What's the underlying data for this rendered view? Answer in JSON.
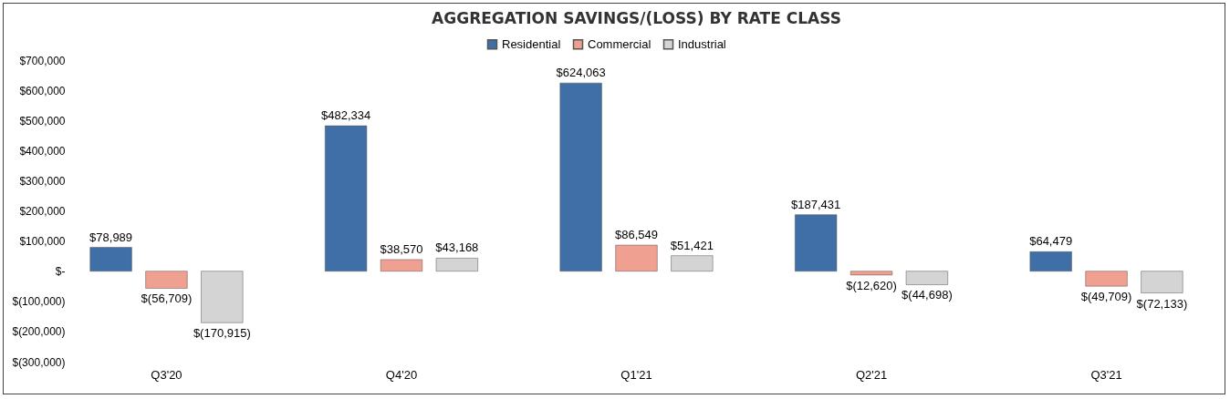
{
  "chart_data": {
    "type": "bar",
    "title": "AGGREGATION SAVINGS/(LOSS) BY RATE CLASS",
    "categories": [
      "Q3'20",
      "Q4'20",
      "Q1'21",
      "Q2'21",
      "Q3'21"
    ],
    "series": [
      {
        "name": "Residential",
        "color": "#3f6fa6",
        "values": [
          78989,
          482334,
          624063,
          187431,
          64479
        ],
        "value_labels": [
          "$78,989",
          "$482,334",
          "$624,063",
          "$187,431",
          "$64,479"
        ]
      },
      {
        "name": "Commercial",
        "color": "#f0a090",
        "values": [
          -56709,
          38570,
          86549,
          -12620,
          -49709
        ],
        "value_labels": [
          "$(56,709)",
          "$38,570",
          "$86,549",
          "$(12,620)",
          "$(49,709)"
        ]
      },
      {
        "name": "Industrial",
        "color": "#d4d4d4",
        "values": [
          -170915,
          43168,
          51421,
          -44698,
          -72133
        ],
        "value_labels": [
          "$(170,915)",
          "$43,168",
          "$51,421",
          "$(44,698)",
          "$(72,133)"
        ]
      }
    ],
    "ylim": [
      -300000,
      700000
    ],
    "yticks": [
      {
        "value": -300000,
        "label": "$(300,000)"
      },
      {
        "value": -200000,
        "label": "$(200,000)"
      },
      {
        "value": -100000,
        "label": "$(100,000)"
      },
      {
        "value": 0,
        "label": "$-"
      },
      {
        "value": 100000,
        "label": "$100,000"
      },
      {
        "value": 200000,
        "label": "$200,000"
      },
      {
        "value": 300000,
        "label": "$300,000"
      },
      {
        "value": 400000,
        "label": "$400,000"
      },
      {
        "value": 500000,
        "label": "$500,000"
      },
      {
        "value": 600000,
        "label": "$600,000"
      },
      {
        "value": 700000,
        "label": "$700,000"
      }
    ],
    "legend": "top",
    "grid": false
  }
}
